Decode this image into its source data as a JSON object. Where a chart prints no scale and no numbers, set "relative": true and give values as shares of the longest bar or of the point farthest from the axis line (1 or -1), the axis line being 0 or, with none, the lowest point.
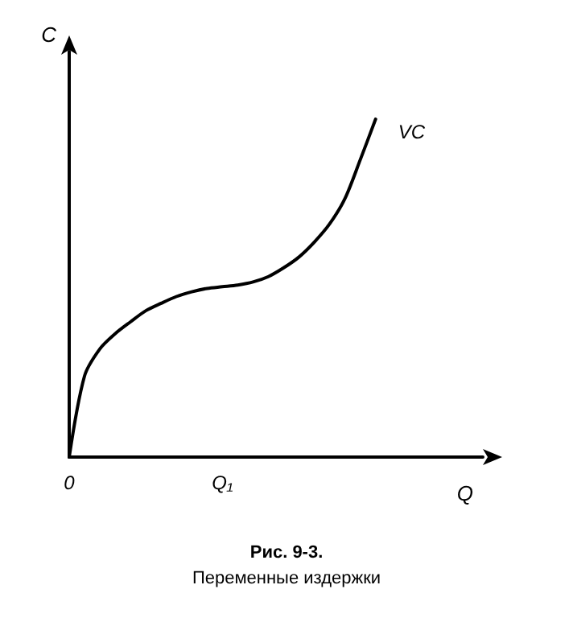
{
  "chart_data": {
    "type": "line",
    "title": "Рис. 9-3.",
    "subtitle": "Переменные издержки",
    "xlabel": "Q",
    "ylabel": "C",
    "relative": true,
    "categories": [
      "0",
      null,
      null,
      null,
      null,
      null,
      null,
      null,
      null,
      null,
      "Q₁",
      null,
      null,
      null,
      null,
      null,
      null,
      null,
      null,
      null,
      null,
      null,
      null,
      null,
      null,
      null,
      null,
      null
    ],
    "series": [
      {
        "name": "VC",
        "color": "#000000",
        "values": [
          0,
          0.24,
          0.32,
          0.365,
          0.4,
          0.433,
          0.455,
          0.475,
          0.489,
          0.499,
          0.504,
          0.509,
          0.518,
          0.534,
          0.56,
          0.592,
          0.636,
          0.69,
          0.765,
          0.88,
          1,
          null,
          null,
          null,
          null,
          null,
          null,
          null
        ]
      }
    ],
    "grid": false,
    "legend": false,
    "marker": "none",
    "line_style": "solid"
  }
}
